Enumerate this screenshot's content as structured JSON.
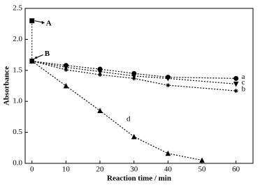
{
  "chart_data": {
    "type": "line",
    "x_label": "Reaction time / min",
    "y_label": "Absorbance",
    "xlim": [
      -2,
      65
    ],
    "xticks": [
      0,
      10,
      20,
      30,
      40,
      50,
      60
    ],
    "ylim": [
      0,
      2.5
    ],
    "yticks": [
      {
        "value": 0,
        "label": "0.0"
      },
      {
        "value": 0.5,
        "label": "0.5"
      },
      {
        "value": 1,
        "label": "1.0"
      },
      {
        "value": 1.5,
        "label": "1.5"
      },
      {
        "value": 2,
        "label": "2.0"
      },
      {
        "value": 2.5,
        "label": "2.5"
      }
    ],
    "series": [
      {
        "name": "a",
        "color": "#000000",
        "marker": "circle",
        "x": [
          0,
          10,
          20,
          30,
          40,
          60
        ],
        "values": [
          1.65,
          1.58,
          1.52,
          1.45,
          1.39,
          1.37
        ]
      },
      {
        "name": "c",
        "color": "#000000",
        "marker": "triangle-down",
        "x": [
          0,
          10,
          20,
          30,
          40,
          60
        ],
        "values": [
          1.65,
          1.55,
          1.48,
          1.41,
          1.37,
          1.28
        ]
      },
      {
        "name": "b",
        "color": "#000000",
        "marker": "star",
        "x": [
          0,
          10,
          20,
          30,
          40,
          60
        ],
        "values": [
          1.65,
          1.51,
          1.43,
          1.37,
          1.26,
          1.17
        ]
      },
      {
        "name": "d",
        "color": "#000000",
        "marker": "triangle-up",
        "x": [
          0,
          10,
          20,
          30,
          40,
          50
        ],
        "values": [
          1.65,
          1.25,
          0.85,
          0.43,
          0.16,
          0.05
        ]
      }
    ],
    "annotations": [
      {
        "text": "A",
        "x": 0,
        "y": 2.3
      },
      {
        "text": "B",
        "x": 0,
        "y": 1.65
      }
    ]
  }
}
